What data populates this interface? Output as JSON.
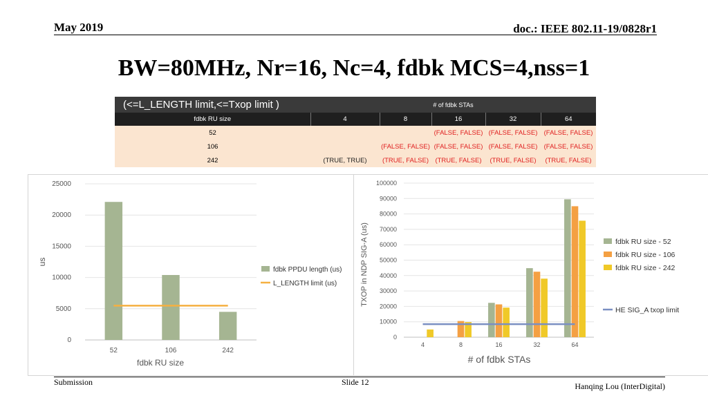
{
  "header": {
    "date": "May 2019",
    "doc": "doc.: IEEE 802.11-19/0828r1"
  },
  "title": "BW=80MHz, Nr=16, Nc=4, fdbk MCS=4,nss=1",
  "table": {
    "condition": "(<=L_LENGTH limit,<=Txop limit )",
    "stas_header": "# of fdbk STAs",
    "ru_header": "fdbk RU size",
    "stas": [
      "4",
      "8",
      "16",
      "32",
      "64"
    ],
    "rows": [
      {
        "ru": "52",
        "cells": [
          "",
          "",
          "(FALSE, FALSE)",
          "(FALSE, FALSE)",
          "(FALSE, FALSE)"
        ]
      },
      {
        "ru": "106",
        "cells": [
          "",
          "(FALSE, FALSE)",
          "(FALSE, FALSE)",
          "(FALSE, FALSE)",
          "(FALSE, FALSE)"
        ]
      },
      {
        "ru": "242",
        "cells": [
          "(TRUE, TRUE)",
          "(TRUE, FALSE)",
          "(TRUE, FALSE)",
          "(TRUE, FALSE)",
          "(TRUE, FALSE)"
        ]
      }
    ]
  },
  "chart_data": [
    {
      "type": "bar",
      "title": "",
      "xlabel": "fdbk RU size",
      "ylabel": "us",
      "categories": [
        "52",
        "106",
        "242"
      ],
      "series": [
        {
          "name": "fdbk PPDU length (us)",
          "type": "bar",
          "color": "#a5b592",
          "values": [
            22100,
            10400,
            4500
          ]
        },
        {
          "name": "L_LENGTH limit (us)",
          "type": "line",
          "color": "#f5b041",
          "values": [
            5484,
            5484,
            5484
          ]
        }
      ],
      "ylim": [
        0,
        25000
      ],
      "yticks": [
        0,
        5000,
        10000,
        15000,
        20000,
        25000
      ],
      "grid": true,
      "legend": "center-right"
    },
    {
      "type": "bar",
      "title": "",
      "xlabel": "# of fdbk STAs",
      "ylabel": "TXOP in NDP SIG-A (us)",
      "categories": [
        "4",
        "8",
        "16",
        "32",
        "64"
      ],
      "series": [
        {
          "name": "fdbk RU size - 52",
          "color": "#a5b592",
          "values": [
            null,
            null,
            22300,
            44800,
            89500
          ]
        },
        {
          "name": "fdbk RU size - 106",
          "color": "#f4a043",
          "values": [
            null,
            10500,
            21300,
            42500,
            85000
          ]
        },
        {
          "name": "fdbk RU size - 242",
          "color": "#f0c928",
          "values": [
            5000,
            9800,
            19200,
            38000,
            75600
          ]
        },
        {
          "name": "HE SIG_A txop limit",
          "type": "line",
          "color": "#7a8fc2",
          "values": [
            8448,
            8448,
            8448,
            8448,
            8448
          ]
        }
      ],
      "ylim": [
        0,
        100000
      ],
      "yticks": [
        0,
        10000,
        20000,
        30000,
        40000,
        50000,
        60000,
        70000,
        80000,
        90000,
        100000
      ],
      "grid": true,
      "legend": "right"
    }
  ],
  "footer": {
    "left": "Submission",
    "center": "Slide 12",
    "right": "Hanqing Lou (InterDigital)"
  }
}
